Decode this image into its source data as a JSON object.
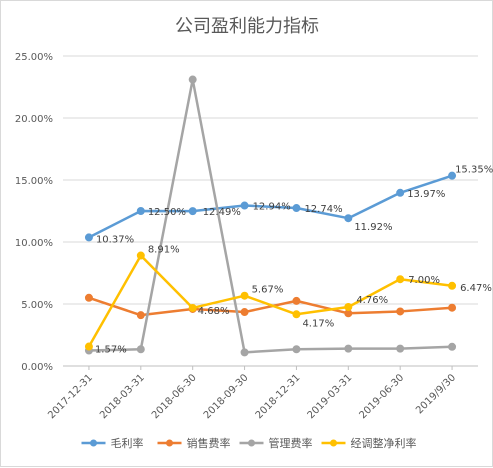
{
  "chart_data": {
    "type": "line",
    "title": "公司盈利能力指标",
    "categories": [
      "2017-12-31",
      "2018-03-31",
      "2018-06-30",
      "2018-09-30",
      "2018-12-31",
      "2019-03-31",
      "2019-06-30",
      "2019/9/30"
    ],
    "y_ticks": [
      "0.00%",
      "5.00%",
      "10.00%",
      "15.00%",
      "20.00%",
      "25.00%"
    ],
    "ylim": [
      0,
      25
    ],
    "grid": true,
    "legend_position": "bottom",
    "series": [
      {
        "name": "毛利率",
        "color": "#5b9bd5",
        "values": [
          10.37,
          12.5,
          12.49,
          12.94,
          12.74,
          11.92,
          13.97,
          15.35
        ],
        "labels": [
          "10.37%",
          "12.50%",
          "12.49%",
          "12.94%",
          "12.74%",
          "11.92%",
          "13.97%",
          "15.35%"
        ]
      },
      {
        "name": "销售费率",
        "color": "#ed7d31",
        "values": [
          5.5,
          4.1,
          4.6,
          4.35,
          5.25,
          4.25,
          4.4,
          4.7
        ],
        "labels": []
      },
      {
        "name": "管理费率",
        "color": "#a5a5a5",
        "values": [
          1.25,
          1.35,
          23.1,
          1.1,
          1.35,
          1.4,
          1.4,
          1.55
        ],
        "labels": []
      },
      {
        "name": "经调整净利率",
        "color": "#ffc000",
        "values": [
          1.57,
          8.91,
          4.68,
          5.67,
          4.17,
          4.76,
          7.0,
          6.47
        ],
        "labels": [
          "1.57%",
          "8.91%",
          "4.68%",
          "5.67%",
          "4.17%",
          "4.76%",
          "7.00%",
          "6.47%"
        ]
      }
    ]
  }
}
